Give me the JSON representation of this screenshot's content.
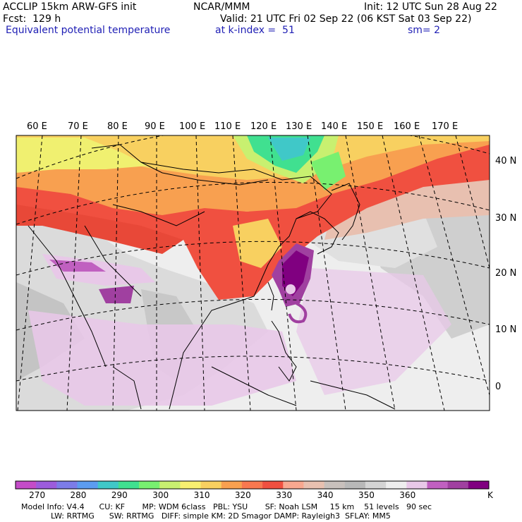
{
  "header": {
    "model": "ACCLIP 15km ARW-GFS init",
    "org": "NCAR/MMM",
    "init": "Init: 12 UTC Sun 28 Aug 22",
    "fcst": "Fcst:  129 h",
    "valid": "Valid: 21 UTC Fri 02 Sep 22 (06 KST Sat 03 Sep 22)",
    "field": "Equivalent potential temperature",
    "level": "at k-index =  51",
    "smooth": "sm= 2"
  },
  "map": {
    "lon_labels": [
      "60 E",
      "70 E",
      "80 E",
      "90 E",
      "100 E",
      "110 E",
      "120 E",
      "130 E",
      "140 E",
      "150 E",
      "160 E",
      "170 E"
    ],
    "lat_labels": [
      "40 N",
      "30 N",
      "20 N",
      "10 N",
      "0"
    ]
  },
  "colorbar": {
    "unit": "K",
    "labels": [
      "270",
      "280",
      "290",
      "300",
      "310",
      "320",
      "330",
      "340",
      "350",
      "360"
    ],
    "colors": [
      "#c44cc8",
      "#9c5cdc",
      "#7c7ce8",
      "#5c9cf0",
      "#40c8c8",
      "#40e090",
      "#78f070",
      "#c8f070",
      "#f8f070",
      "#f8d060",
      "#f8a050",
      "#f87850",
      "#f05040",
      "#f8a890",
      "#e8c0b0",
      "#c8c0bc",
      "#b8b8b8",
      "#d4d4d4",
      "#eeeeee",
      "#e8c8e8",
      "#c060c0",
      "#a040a0",
      "#800080"
    ]
  },
  "footer": {
    "line1": "Model Info: V4.4      CU: KF       MP: WDM 6class   PBL: YSU       SF: Noah LSM     15 km    51 levels   90 sec",
    "line2": "            LW: RRTMG      SW: RRTMG   DIFF: simple KM: 2D Smagor DAMP: Rayleigh3  SFLAY: MM5"
  }
}
